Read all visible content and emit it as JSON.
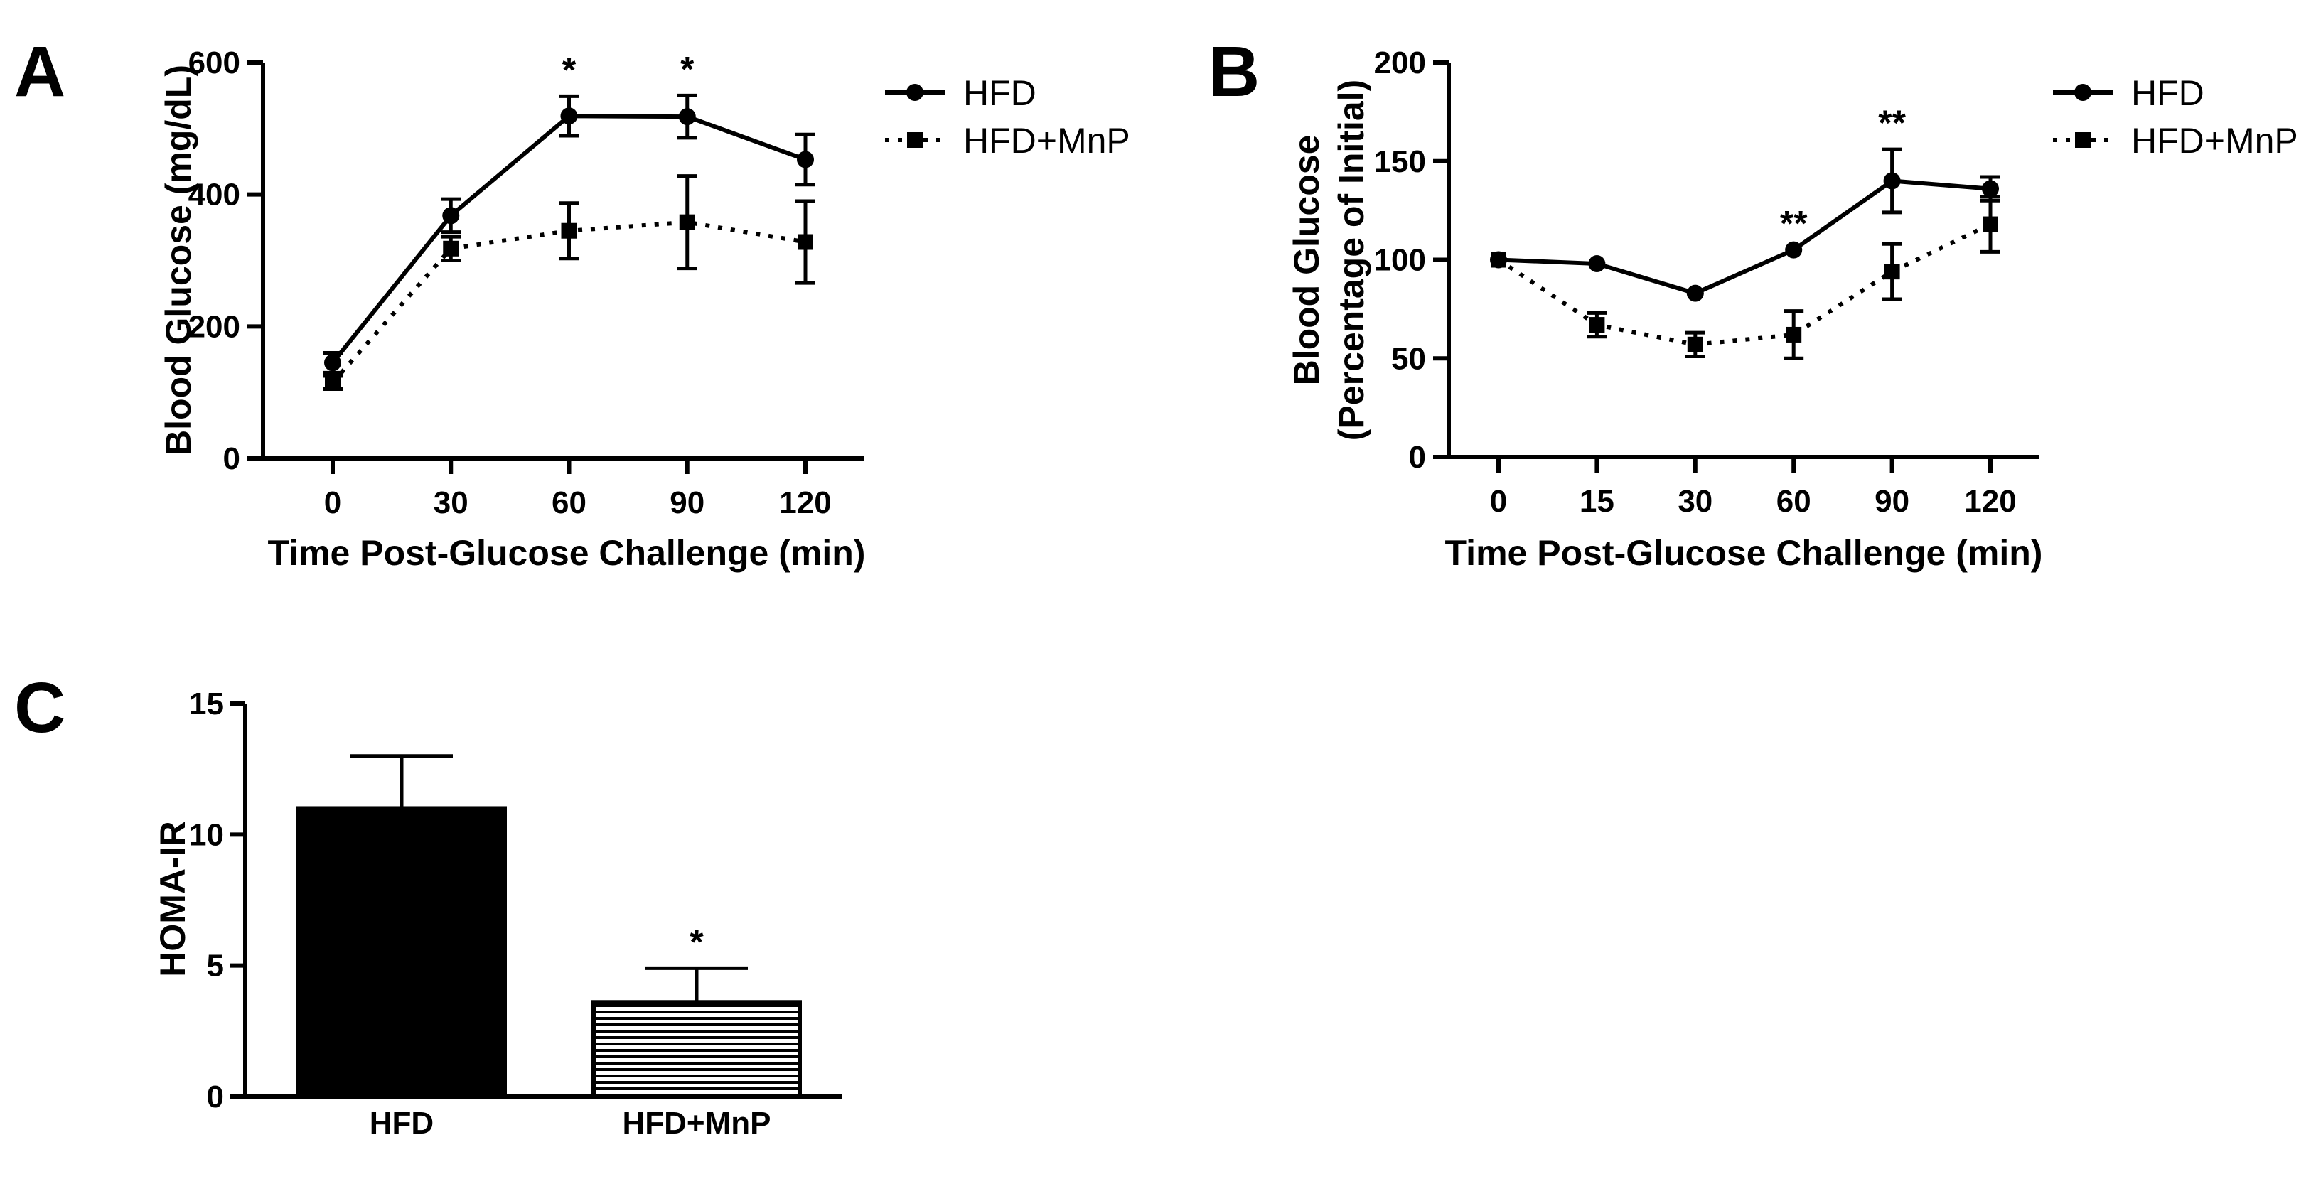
{
  "chart_data": [
    {
      "panel": "A",
      "type": "line",
      "x": [
        0,
        30,
        60,
        90,
        120
      ],
      "xticks": [
        "0",
        "30",
        "60",
        "90",
        "120"
      ],
      "ylim": [
        0,
        600
      ],
      "yticks": [
        0,
        200,
        400,
        600
      ],
      "xlabel": "Time Post-Glucose Challenge (min)",
      "ylabel": "Blood Glucose (mg/dL)",
      "series": [
        {
          "name": "HFD",
          "marker": "circle",
          "linestyle": "solid",
          "values": [
            145,
            368,
            519,
            518,
            453
          ],
          "errors": [
            15,
            25,
            30,
            32,
            38
          ]
        },
        {
          "name": "HFD+MnP",
          "marker": "square",
          "linestyle": "dotted",
          "values": [
            115,
            318,
            345,
            358,
            328
          ],
          "errors": [
            10,
            18,
            42,
            70,
            62
          ]
        }
      ],
      "annotations": [
        {
          "x": 60,
          "text": "*"
        },
        {
          "x": 90,
          "text": "*"
        }
      ],
      "legend": "top-right"
    },
    {
      "panel": "B",
      "type": "line",
      "x": [
        0,
        15,
        30,
        60,
        90,
        120
      ],
      "xticks": [
        "0",
        "15",
        "30",
        "60",
        "90",
        "120"
      ],
      "ylim": [
        0,
        200
      ],
      "yticks": [
        0,
        50,
        100,
        150,
        200
      ],
      "xlabel": "Time Post-Glucose Challenge (min)",
      "ylabel": "Blood Glucose",
      "ylabel2": "(Percentage of Initial)",
      "series": [
        {
          "name": "HFD",
          "marker": "circle",
          "linestyle": "solid",
          "values": [
            100,
            98,
            83,
            105,
            140,
            136
          ],
          "errors": [
            0,
            0,
            0,
            0,
            16,
            6
          ]
        },
        {
          "name": "HFD+MnP",
          "marker": "square",
          "linestyle": "dotted",
          "values": [
            100,
            67,
            57,
            62,
            94,
            118
          ],
          "errors": [
            0,
            6,
            6,
            12,
            14,
            14
          ]
        }
      ],
      "annotations": [
        {
          "x": 60,
          "text": "**"
        },
        {
          "x": 90,
          "text": "**"
        }
      ],
      "legend": "top-right"
    },
    {
      "panel": "C",
      "type": "bar",
      "categories": [
        "HFD",
        "HFD+MnP"
      ],
      "values": [
        11.0,
        3.6
      ],
      "errors": [
        2.0,
        1.3
      ],
      "fills": [
        "solid",
        "horizontal-stripes"
      ],
      "ylim": [
        0,
        15
      ],
      "yticks": [
        0,
        5,
        10,
        15
      ],
      "xlabel": "",
      "ylabel": "HOMA-IR",
      "annotations": [
        {
          "category": "HFD+MnP",
          "text": "*"
        }
      ]
    }
  ]
}
